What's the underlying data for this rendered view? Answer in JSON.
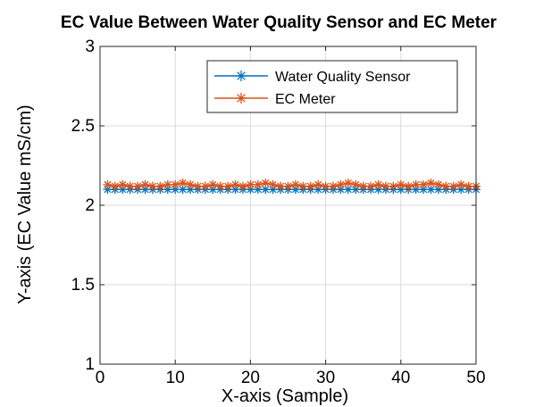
{
  "chart_data": {
    "type": "line",
    "title": "EC Value Between Water Quality Sensor and EC Meter",
    "xlabel": "X-axis (Sample)",
    "ylabel": "Y-axis (EC Value mS/cm)",
    "xlim": [
      0,
      50
    ],
    "ylim": [
      1,
      3
    ],
    "xticks": [
      0,
      10,
      20,
      30,
      40,
      50
    ],
    "xtick_labels": [
      "0",
      "10",
      "20",
      "30",
      "40",
      "50"
    ],
    "yticks": [
      1,
      1.5,
      2,
      2.5,
      3
    ],
    "ytick_labels": [
      "1",
      "1.5",
      "2",
      "2.5",
      "3"
    ],
    "grid": true,
    "legend_position": "top-right",
    "x": [
      1,
      2,
      3,
      4,
      5,
      6,
      7,
      8,
      9,
      10,
      11,
      12,
      13,
      14,
      15,
      16,
      17,
      18,
      19,
      20,
      21,
      22,
      23,
      24,
      25,
      26,
      27,
      28,
      29,
      30,
      31,
      32,
      33,
      34,
      35,
      36,
      37,
      38,
      39,
      40,
      41,
      42,
      43,
      44,
      45,
      46,
      47,
      48,
      49,
      50
    ],
    "series": [
      {
        "name": "Water Quality Sensor",
        "color": "#0072BD",
        "marker": "asterisk",
        "values": [
          2.1,
          2.1,
          2.1,
          2.1,
          2.1,
          2.1,
          2.1,
          2.1,
          2.1,
          2.1,
          2.1,
          2.1,
          2.1,
          2.1,
          2.1,
          2.1,
          2.1,
          2.1,
          2.1,
          2.1,
          2.1,
          2.1,
          2.1,
          2.1,
          2.1,
          2.1,
          2.1,
          2.1,
          2.1,
          2.1,
          2.1,
          2.1,
          2.1,
          2.1,
          2.1,
          2.1,
          2.1,
          2.1,
          2.1,
          2.1,
          2.1,
          2.1,
          2.1,
          2.1,
          2.1,
          2.1,
          2.1,
          2.1,
          2.1,
          2.1
        ]
      },
      {
        "name": "EC Meter",
        "color": "#D95319",
        "marker": "asterisk",
        "values": [
          2.13,
          2.12,
          2.13,
          2.12,
          2.12,
          2.13,
          2.12,
          2.12,
          2.13,
          2.13,
          2.14,
          2.13,
          2.12,
          2.12,
          2.13,
          2.12,
          2.12,
          2.13,
          2.12,
          2.13,
          2.13,
          2.14,
          2.13,
          2.12,
          2.12,
          2.13,
          2.12,
          2.12,
          2.13,
          2.12,
          2.12,
          2.13,
          2.14,
          2.13,
          2.12,
          2.12,
          2.13,
          2.12,
          2.12,
          2.13,
          2.12,
          2.13,
          2.13,
          2.14,
          2.13,
          2.12,
          2.12,
          2.13,
          2.12,
          2.12
        ]
      }
    ]
  }
}
